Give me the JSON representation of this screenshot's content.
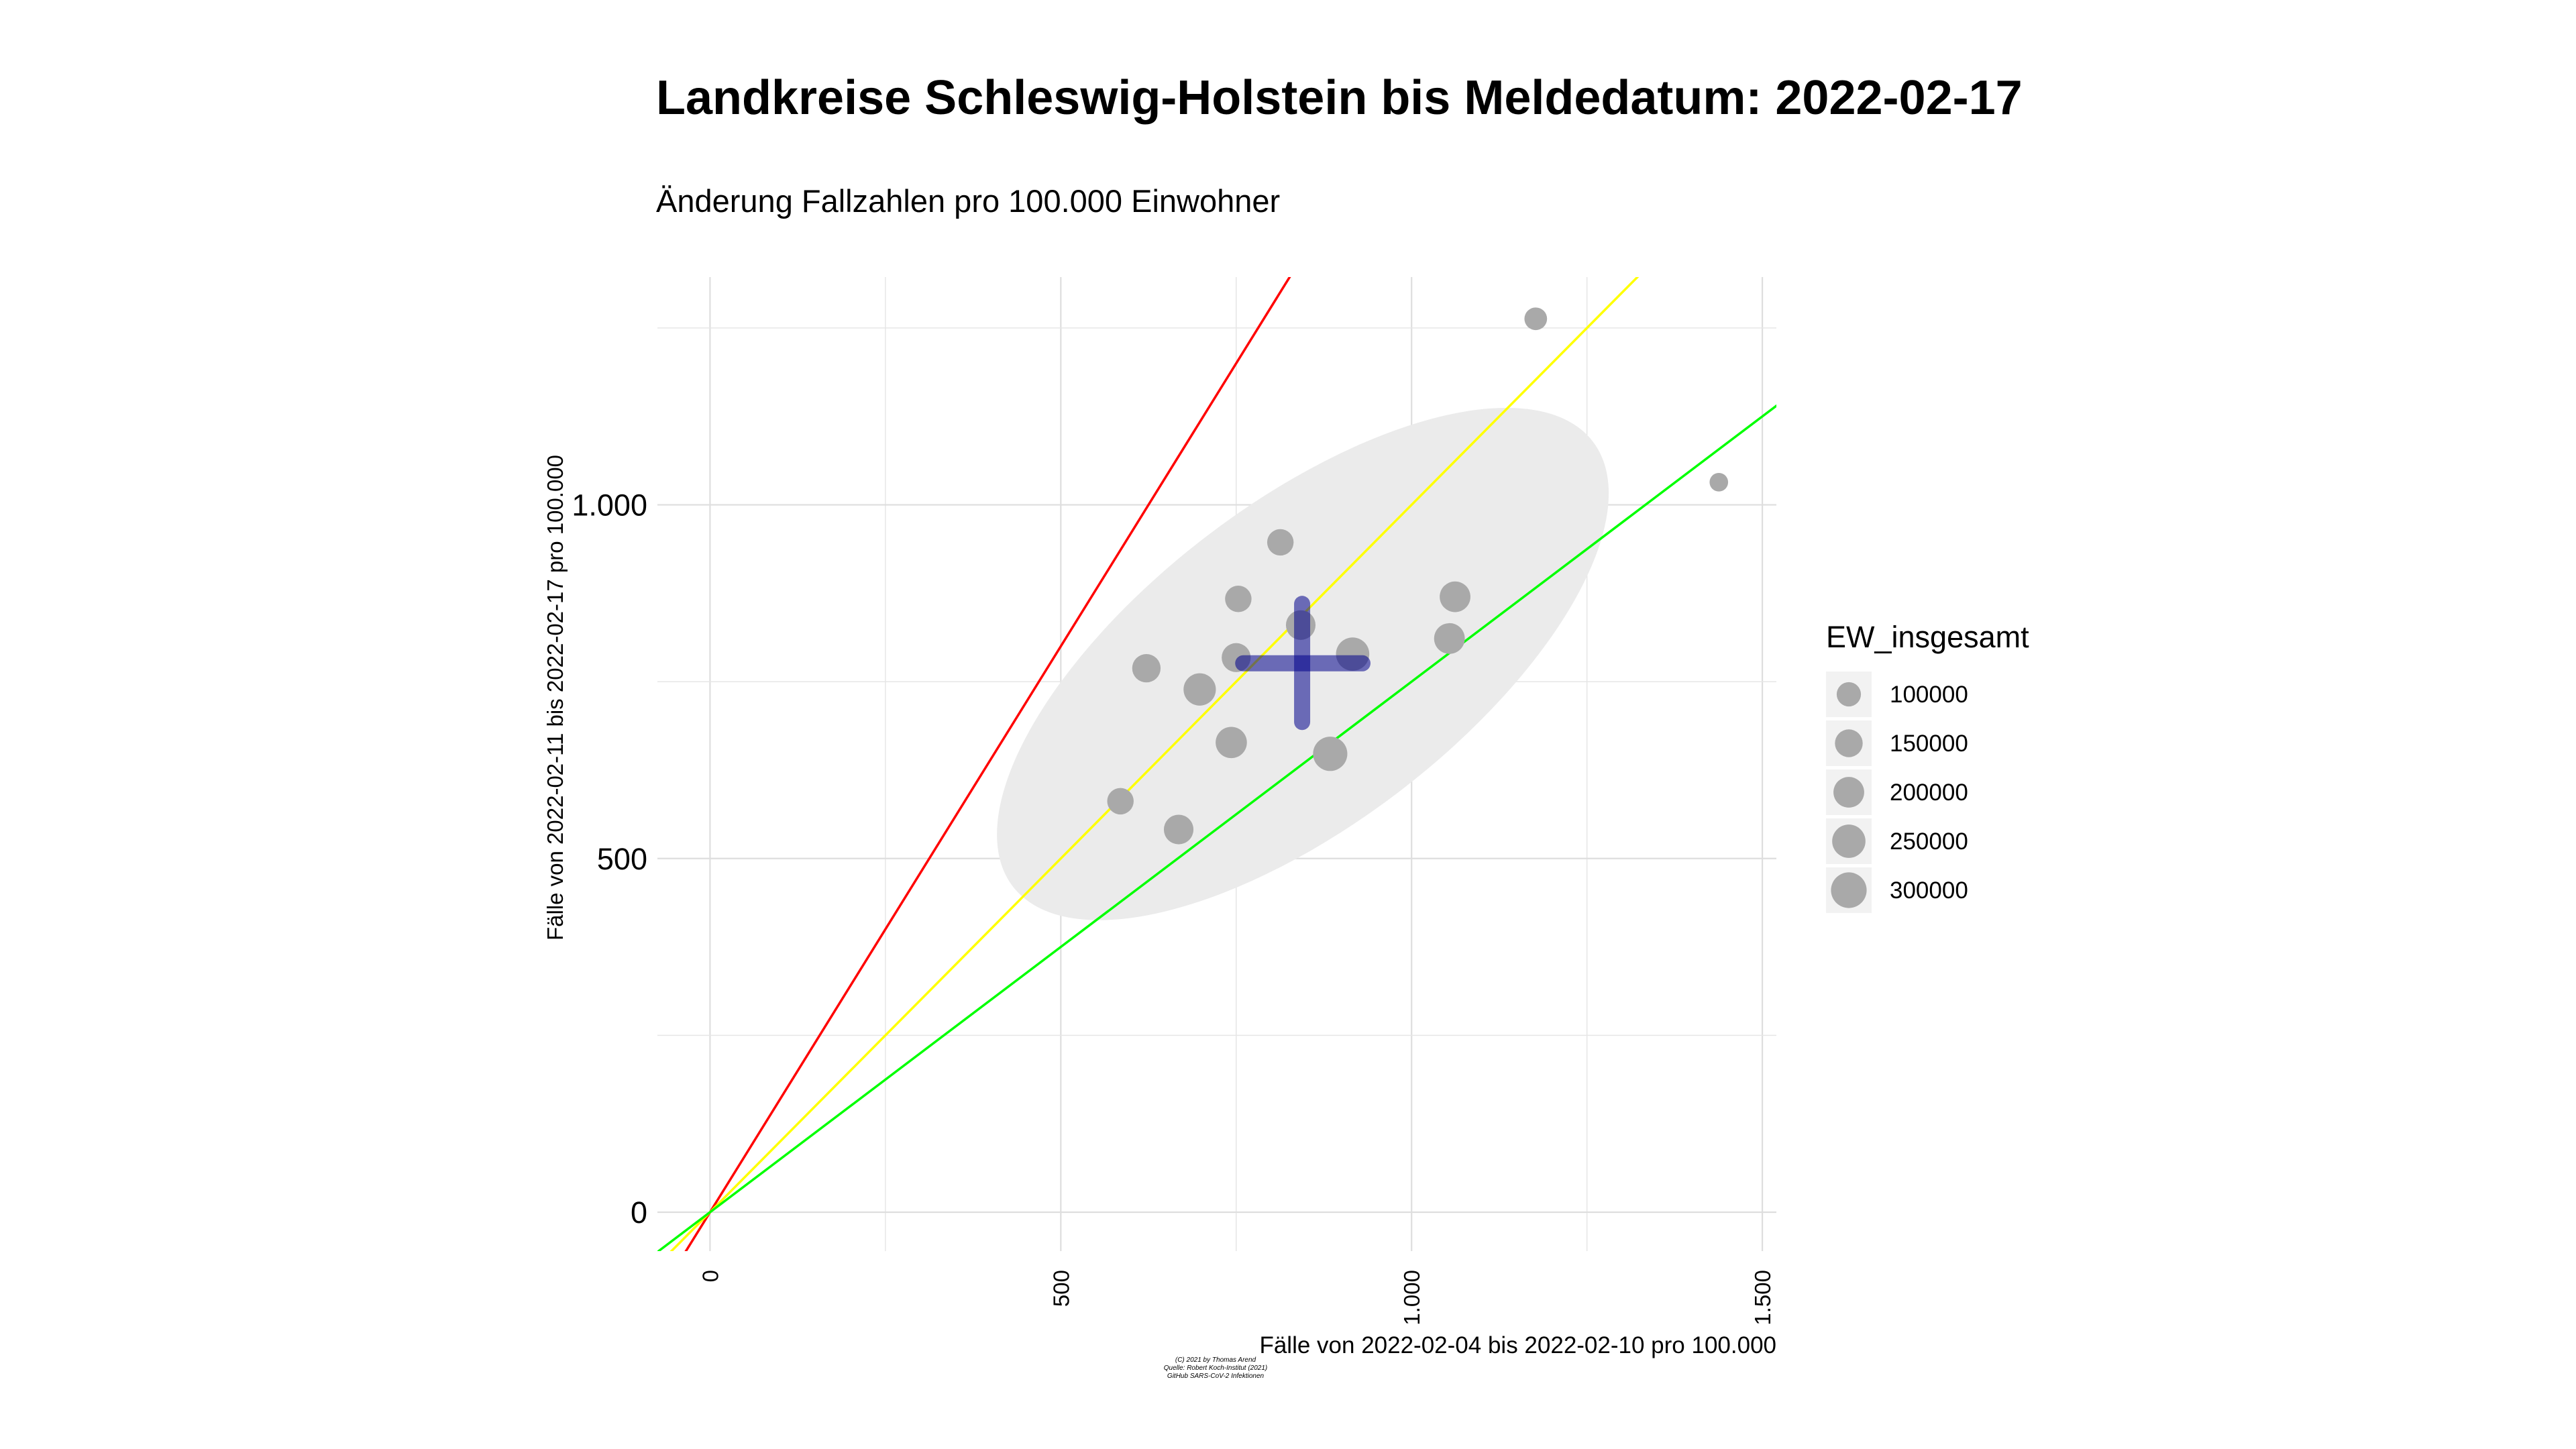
{
  "chart_data": {
    "type": "scatter",
    "title": "Landkreise Schleswig-Holstein bis Meldedatum: 2022-02-17",
    "subtitle": "Änderung Fallzahlen pro 100.000 Einwohner",
    "xlabel": "Fälle von 2022-02-04 bis 2022-02-10 pro 100.000",
    "ylabel": "Fälle von 2022-02-11 bis 2022-02-17 pro 100.000",
    "xlim": [
      -75,
      1520
    ],
    "ylim": [
      -55,
      1322
    ],
    "x_ticks": [
      0,
      500,
      1000,
      1500
    ],
    "x_tick_labels": [
      "0",
      "500",
      "1.000",
      "1.500"
    ],
    "y_ticks": [
      0,
      500,
      1000
    ],
    "y_tick_labels": [
      "0",
      "500",
      "1.000"
    ],
    "grid": true,
    "legend": {
      "title": "EW_insgesamt",
      "position": "right",
      "items": [
        {
          "label": "100000",
          "value": 100000
        },
        {
          "label": "150000",
          "value": 150000
        },
        {
          "label": "200000",
          "value": 200000
        },
        {
          "label": "250000",
          "value": 250000
        },
        {
          "label": "300000",
          "value": 300000
        }
      ]
    },
    "points": [
      {
        "x": 1177,
        "y": 1263,
        "size": 80000
      },
      {
        "x": 1438,
        "y": 1032,
        "size": 40000
      },
      {
        "x": 813,
        "y": 947,
        "size": 130000
      },
      {
        "x": 753,
        "y": 867,
        "size": 130000
      },
      {
        "x": 1062,
        "y": 870,
        "size": 200000
      },
      {
        "x": 842,
        "y": 830,
        "size": 180000
      },
      {
        "x": 1054,
        "y": 811,
        "size": 200000
      },
      {
        "x": 916,
        "y": 789,
        "size": 250000
      },
      {
        "x": 750,
        "y": 784,
        "size": 170000
      },
      {
        "x": 622,
        "y": 769,
        "size": 160000
      },
      {
        "x": 698,
        "y": 739,
        "size": 230000
      },
      {
        "x": 743,
        "y": 664,
        "size": 210000
      },
      {
        "x": 884,
        "y": 648,
        "size": 270000
      },
      {
        "x": 585,
        "y": 581,
        "size": 130000
      },
      {
        "x": 668,
        "y": 541,
        "size": 180000
      }
    ],
    "reference_lines": [
      {
        "slope": 1.6,
        "color": "#FF0000"
      },
      {
        "slope": 1.0,
        "color": "#FFFF00"
      },
      {
        "slope": 0.75,
        "color": "#00FF00"
      }
    ],
    "mean": {
      "x": 844,
      "y": 776
    },
    "spread_x": [
      760,
      930
    ],
    "spread_y": [
      693,
      860
    ],
    "mean_color": "#00008B",
    "ellipse": {
      "center": [
        845,
        775
      ],
      "semi_axes": [
        521,
        228
      ],
      "angle_deg": 37.5,
      "color": "#EBEBEB"
    },
    "point_color": "#A9A9A9",
    "caption": [
      "(C) 2021 by Thomas Arend",
      "Quelle: Robert Koch-Institut (2021)",
      "GitHub SARS-CoV-2 Infektionen"
    ]
  }
}
